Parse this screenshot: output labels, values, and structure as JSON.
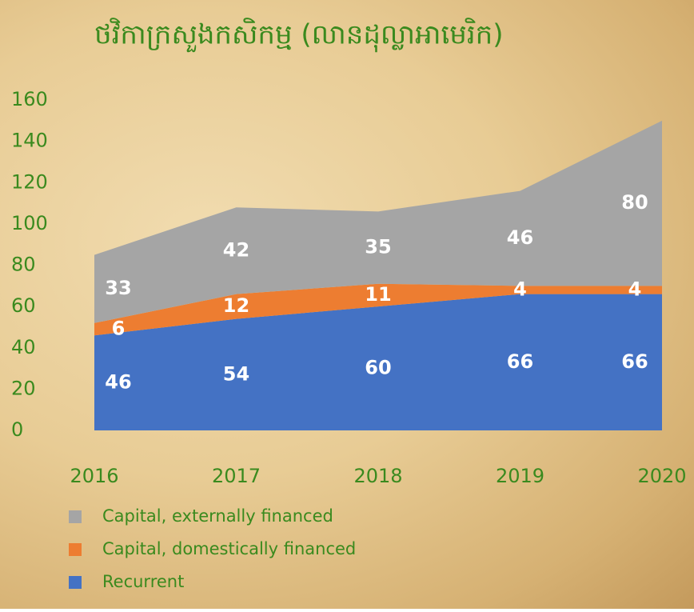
{
  "chart_data": {
    "type": "stacked-area",
    "title": "ថវិកាក្រសួងកសិកម្ម (លានដុល្លាអាមេរិក)",
    "categories": [
      "2016",
      "2017",
      "2018",
      "2019",
      "2020"
    ],
    "series": [
      {
        "name": "Recurrent",
        "color": "#4472c4",
        "values": [
          46,
          54,
          60,
          66,
          66
        ]
      },
      {
        "name": "Capital, domestically financed",
        "color": "#ed7d31",
        "values": [
          6,
          12,
          11,
          4,
          4
        ]
      },
      {
        "name": "Capital, externally financed",
        "color": "#a5a5a5",
        "values": [
          33,
          42,
          35,
          46,
          80
        ]
      }
    ],
    "ylim": [
      0,
      160
    ],
    "yticks": [
      0,
      20,
      40,
      60,
      80,
      100,
      120,
      140,
      160
    ],
    "grid": false
  }
}
